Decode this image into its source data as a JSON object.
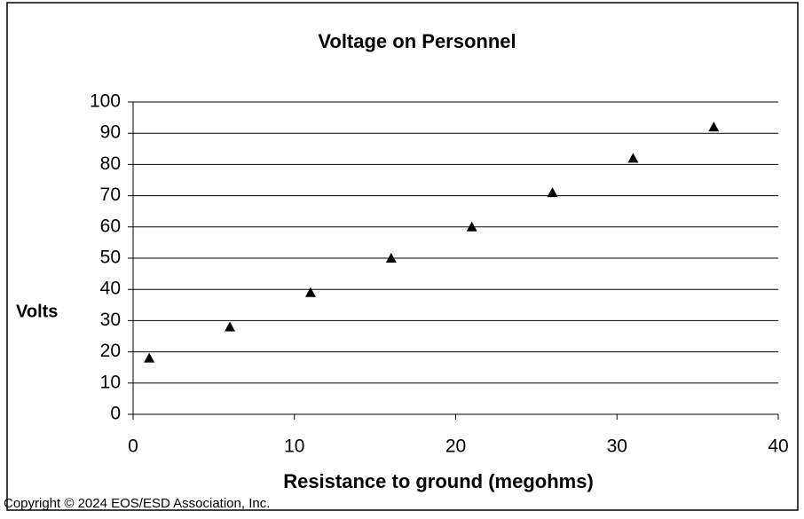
{
  "chart_data": {
    "type": "scatter",
    "title": "Voltage on Personnel",
    "x_label": "Resistance to ground  (megohms)",
    "y_label": "Volts",
    "copyright": "Copyright © 2024 EOS/ESD Association, Inc.",
    "series": [
      {
        "name": "Volts",
        "color": "#000000",
        "x": [
          1,
          6,
          11,
          16,
          21,
          26,
          31,
          36
        ],
        "values": [
          18,
          28,
          39,
          50,
          60,
          71,
          82,
          92
        ]
      }
    ],
    "xlim": [
      0,
      40
    ],
    "xticks": [
      0,
      10,
      20,
      30,
      40
    ],
    "ylim": [
      0,
      100
    ],
    "yticks": [
      0,
      10,
      20,
      30,
      40,
      50,
      60,
      70,
      80,
      90,
      100
    ],
    "grid": true,
    "marker": "triangle"
  }
}
